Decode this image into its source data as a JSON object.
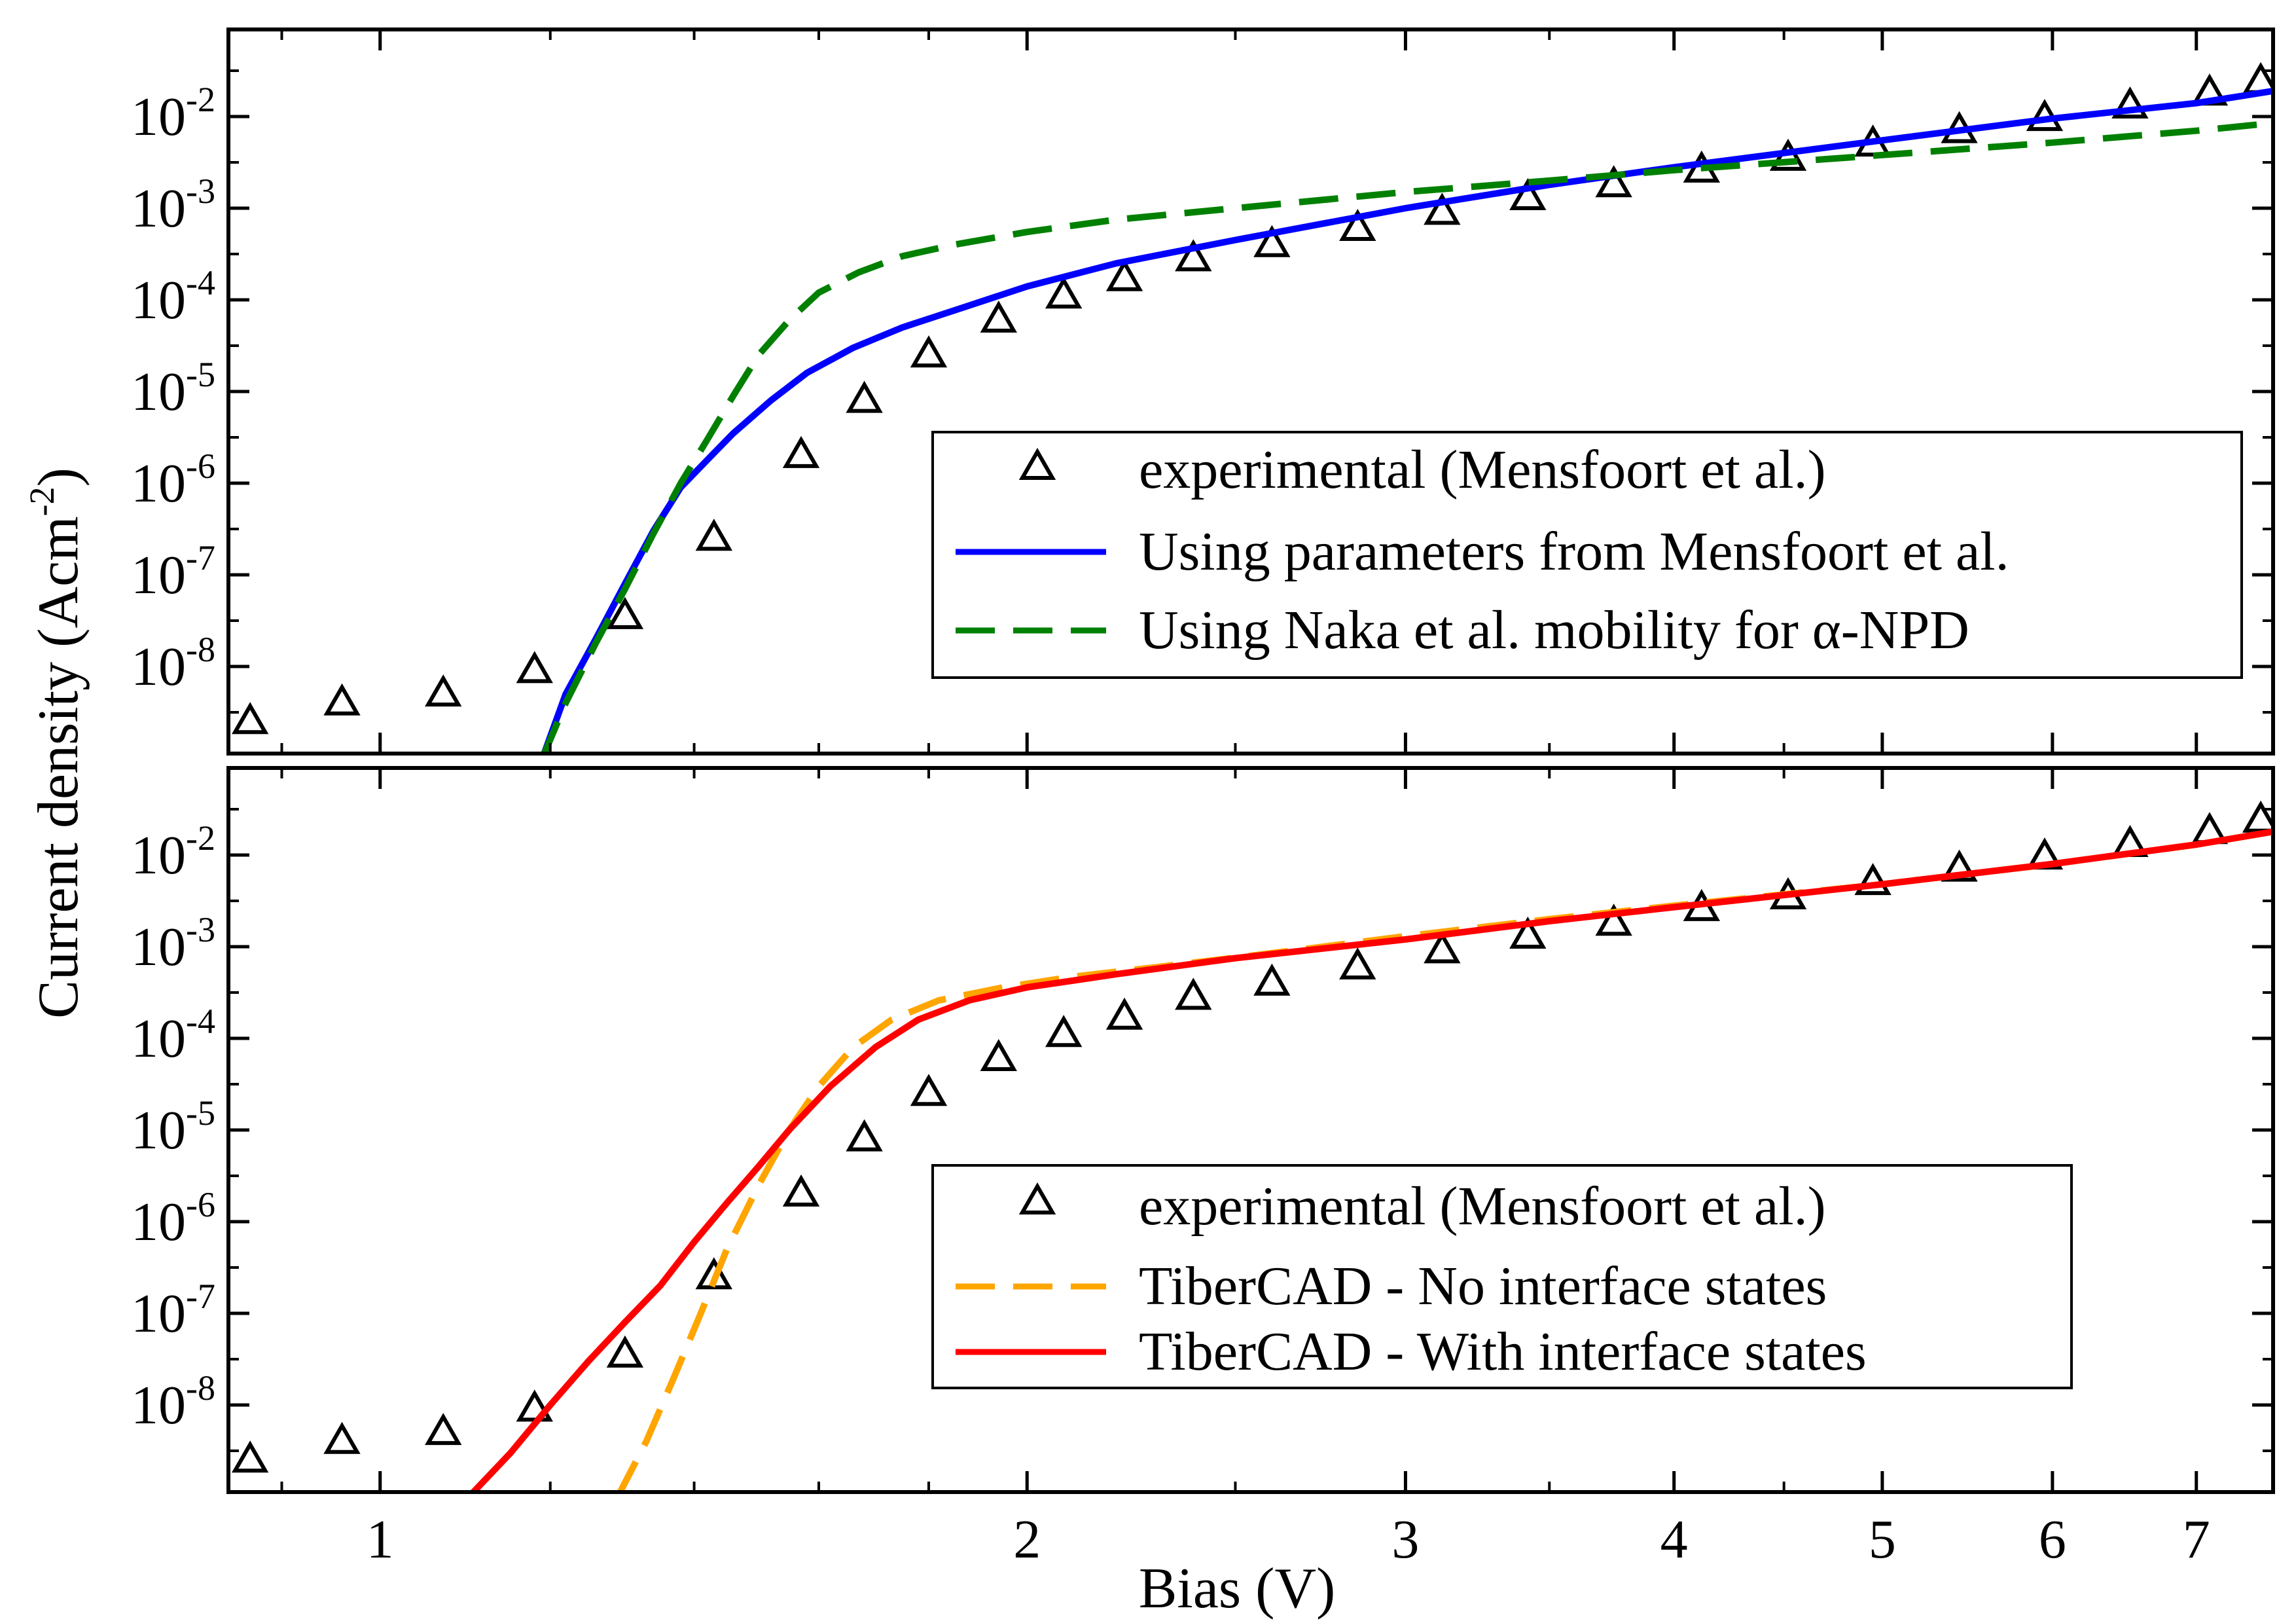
{
  "chart_data": [
    {
      "type": "line",
      "panel": "top",
      "xscale": "log",
      "yscale": "log",
      "xlim": [
        0.85,
        7.6
      ],
      "ylim": [
        1e-09,
        1
      ],
      "ylabel": "Current density (Acm",
      "ylabel_sup": "-2",
      "ylabel_close": ")",
      "yticks": [
        {
          "value": 1e-08,
          "base": "10",
          "exp": "-8"
        },
        {
          "value": 1e-07,
          "base": "10",
          "exp": "-7"
        },
        {
          "value": 1e-06,
          "base": "10",
          "exp": "-6"
        },
        {
          "value": 1e-05,
          "base": "10",
          "exp": "-5"
        },
        {
          "value": 0.0001,
          "base": "10",
          "exp": "-4"
        },
        {
          "value": 0.001,
          "base": "10",
          "exp": "-3"
        },
        {
          "value": 0.01,
          "base": "10",
          "exp": "-2"
        }
      ],
      "xticks": [
        1,
        2,
        3,
        4,
        5,
        6,
        7
      ],
      "legend_position": "center-right",
      "series": [
        {
          "name": "experimental (Mensfoort et al.)",
          "style": "triangle-markers",
          "color": "#000000",
          "x": [
            0.87,
            0.96,
            1.07,
            1.18,
            1.3,
            1.43,
            1.57,
            1.68,
            1.8,
            1.94,
            2.08,
            2.22,
            2.39,
            2.6,
            2.85,
            3.12,
            3.42,
            3.75,
            4.12,
            4.52,
            4.95,
            5.43,
            5.95,
            6.52,
            7.1,
            7.5
          ],
          "y": [
            2.5e-09,
            4e-09,
            5e-09,
            9e-09,
            3.5e-08,
            2.5e-07,
            2e-06,
            8e-06,
            2.5e-05,
            6e-05,
            0.00011,
            0.00017,
            0.00028,
            0.0004,
            0.0006,
            0.0009,
            0.0013,
            0.0018,
            0.0026,
            0.0035,
            0.005,
            0.007,
            0.0095,
            0.013,
            0.018,
            0.024
          ]
        },
        {
          "name": "Using parameters from Mensfoort et al.",
          "style": "solid",
          "color": "#0000ff",
          "x": [
            1.19,
            1.22,
            1.26,
            1.3,
            1.34,
            1.38,
            1.42,
            1.46,
            1.52,
            1.58,
            1.66,
            1.75,
            1.86,
            2.0,
            2.2,
            2.5,
            3.0,
            3.5,
            4.0,
            5.0,
            6.0,
            7.0,
            7.6
          ],
          "y": [
            1e-09,
            5e-09,
            2e-08,
            8e-08,
            3e-07,
            9e-07,
            1.8e-06,
            3.5e-06,
            8e-06,
            1.6e-05,
            3e-05,
            5e-05,
            8e-05,
            0.00014,
            0.00025,
            0.00045,
            0.001,
            0.0018,
            0.0028,
            0.0055,
            0.0095,
            0.014,
            0.019
          ]
        },
        {
          "name": "Using Naka et al. mobility for α-NPD",
          "style": "dashed",
          "color": "#008000",
          "x": [
            1.19,
            1.22,
            1.26,
            1.3,
            1.34,
            1.38,
            1.42,
            1.46,
            1.5,
            1.55,
            1.6,
            1.67,
            1.75,
            1.85,
            2.0,
            2.2,
            2.5,
            3.0,
            3.5,
            4.0,
            5.0,
            6.0,
            7.0,
            7.6
          ],
          "y": [
            1e-09,
            4e-09,
            1.8e-08,
            7e-08,
            2.8e-07,
            1e-06,
            3e-06,
            9e-06,
            2.5e-05,
            6e-05,
            0.00012,
            0.0002,
            0.0003,
            0.0004,
            0.00055,
            0.00075,
            0.001,
            0.0015,
            0.002,
            0.0026,
            0.0038,
            0.0052,
            0.007,
            0.0085
          ]
        }
      ]
    },
    {
      "type": "line",
      "panel": "bottom",
      "xscale": "log",
      "yscale": "log",
      "xlim": [
        0.85,
        7.6
      ],
      "ylim": [
        1e-09,
        1
      ],
      "xlabel": "Bias (V)",
      "yticks": [
        {
          "value": 1e-08,
          "base": "10",
          "exp": "-8"
        },
        {
          "value": 1e-07,
          "base": "10",
          "exp": "-7"
        },
        {
          "value": 1e-06,
          "base": "10",
          "exp": "-6"
        },
        {
          "value": 1e-05,
          "base": "10",
          "exp": "-5"
        },
        {
          "value": 0.0001,
          "base": "10",
          "exp": "-4"
        },
        {
          "value": 0.001,
          "base": "10",
          "exp": "-3"
        },
        {
          "value": 0.01,
          "base": "10",
          "exp": "-2"
        }
      ],
      "xticks": [
        1,
        2,
        3,
        4,
        5,
        6,
        7
      ],
      "legend_position": "center-right",
      "series": [
        {
          "name": "experimental (Mensfoort et al.)",
          "style": "triangle-markers",
          "color": "#000000",
          "x": [
            0.87,
            0.96,
            1.07,
            1.18,
            1.3,
            1.43,
            1.57,
            1.68,
            1.8,
            1.94,
            2.08,
            2.22,
            2.39,
            2.6,
            2.85,
            3.12,
            3.42,
            3.75,
            4.12,
            4.52,
            4.95,
            5.43,
            5.95,
            6.52,
            7.1,
            7.5
          ],
          "y": [
            2.5e-09,
            4e-09,
            5e-09,
            9e-09,
            3.5e-08,
            2.5e-07,
            2e-06,
            8e-06,
            2.5e-05,
            6e-05,
            0.00011,
            0.00017,
            0.00028,
            0.0004,
            0.0006,
            0.0009,
            0.0013,
            0.0018,
            0.0026,
            0.0035,
            0.005,
            0.007,
            0.0095,
            0.013,
            0.018,
            0.024
          ]
        },
        {
          "name": "TiberCAD - No interface states",
          "style": "dashed",
          "color": "#ffa500",
          "x": [
            1.29,
            1.33,
            1.37,
            1.41,
            1.45,
            1.5,
            1.55,
            1.6,
            1.66,
            1.73,
            1.82,
            1.95,
            2.1,
            2.3,
            2.6,
            3.0,
            3.5,
            4.0,
            5.0,
            6.0,
            7.0,
            7.6
          ],
          "y": [
            1e-09,
            4e-09,
            2e-08,
            1e-07,
            5e-07,
            2.5e-06,
            1e-05,
            3e-05,
            8e-05,
            0.00016,
            0.00026,
            0.00036,
            0.00047,
            0.0006,
            0.00085,
            0.0013,
            0.002,
            0.0028,
            0.0048,
            0.008,
            0.013,
            0.018
          ]
        },
        {
          "name": "TiberCAD - With interface states",
          "style": "solid",
          "color": "#ff0000",
          "x": [
            1.1,
            1.15,
            1.2,
            1.25,
            1.3,
            1.35,
            1.4,
            1.45,
            1.5,
            1.55,
            1.62,
            1.7,
            1.78,
            1.88,
            2.0,
            2.2,
            2.5,
            3.0,
            3.5,
            4.0,
            5.0,
            6.0,
            7.0,
            7.6
          ],
          "y": [
            1e-09,
            3e-09,
            1e-08,
            3e-08,
            8e-08,
            2e-07,
            6e-07,
            1.6e-06,
            4e-06,
            1e-05,
            3e-05,
            8e-05,
            0.00016,
            0.00026,
            0.00036,
            0.0005,
            0.00075,
            0.0012,
            0.0019,
            0.0027,
            0.0048,
            0.008,
            0.013,
            0.018
          ]
        }
      ]
    }
  ]
}
